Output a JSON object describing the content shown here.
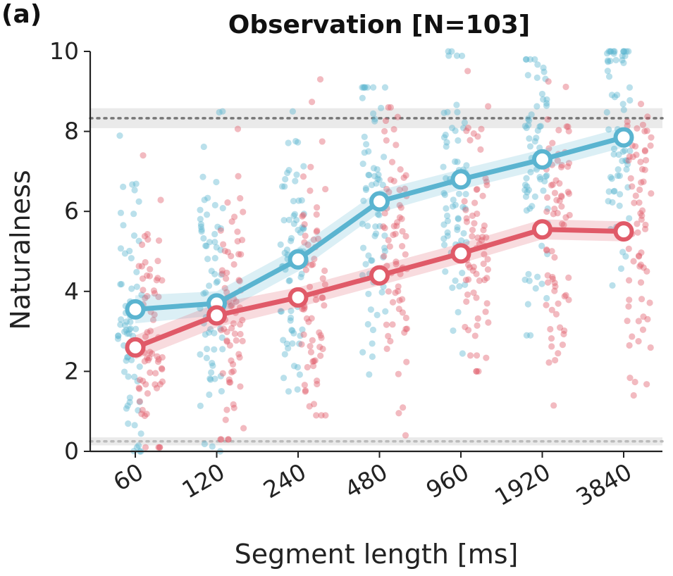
{
  "panel_label": "(a)",
  "chart_data": {
    "type": "scatter",
    "title": "Observation [N=103]",
    "xlabel": "Segment length [ms]",
    "ylabel": "Naturalness",
    "categories": [
      "60",
      "120",
      "240",
      "480",
      "960",
      "1920",
      "3840"
    ],
    "ylim": [
      0,
      10
    ],
    "yticks": [
      "0",
      "2",
      "4",
      "6",
      "8",
      "10"
    ],
    "grid": false,
    "reference_lines": [
      {
        "y": 8.33,
        "band": [
          8.08,
          8.58
        ],
        "style": "dotted",
        "color": "#777777"
      },
      {
        "y": 0.25,
        "band": [
          0.15,
          0.35
        ],
        "style": "dotted",
        "color": "#bbbbbb"
      }
    ],
    "series": [
      {
        "color": "#5ab4d0",
        "mean": [
          3.55,
          3.7,
          4.8,
          6.25,
          6.8,
          7.3,
          7.85
        ],
        "ci": [
          0.35,
          0.3,
          0.3,
          0.28,
          0.25,
          0.25,
          0.25
        ],
        "spread_min": [
          0.0,
          0.0,
          0.4,
          1.6,
          2.2,
          2.9,
          2.4
        ],
        "spread_max": [
          9.0,
          8.5,
          8.5,
          9.1,
          10.0,
          9.8,
          10.0
        ]
      },
      {
        "color": "#e05a68",
        "mean": [
          2.6,
          3.4,
          3.85,
          4.4,
          4.95,
          5.55,
          5.5
        ],
        "ci": [
          0.3,
          0.3,
          0.25,
          0.25,
          0.25,
          0.25,
          0.25
        ],
        "spread_min": [
          0.1,
          0.3,
          0.9,
          0.4,
          2.0,
          1.0,
          1.4
        ],
        "spread_max": [
          7.4,
          8.3,
          9.5,
          8.6,
          9.9,
          9.7,
          9.7
        ]
      }
    ]
  }
}
